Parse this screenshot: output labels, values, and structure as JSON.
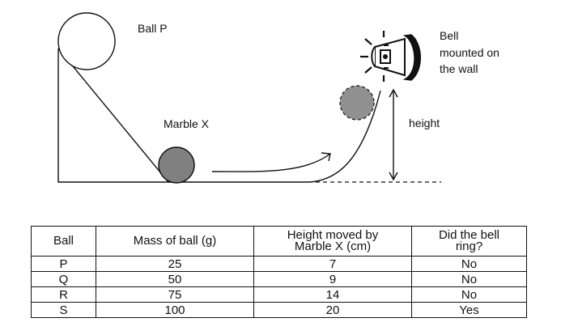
{
  "diagram": {
    "ball_p_label": "Ball P",
    "marble_label": "Marble X",
    "bell_label_line1": "Bell",
    "bell_label_line2": "mounted on",
    "bell_label_line3": "the wall",
    "height_label": "height"
  },
  "table": {
    "headers": [
      "Ball",
      "Mass of ball (g)",
      "Height moved by Marble X (cm)",
      "Did the bell ring?"
    ],
    "header_lines": [
      [
        "Ball"
      ],
      [
        "Mass of ball (g)"
      ],
      [
        "Height moved by",
        "Marble X (cm)"
      ],
      [
        "Did the bell",
        "ring?"
      ]
    ],
    "rows": [
      [
        "P",
        "25",
        "7",
        "No"
      ],
      [
        "Q",
        "50",
        "9",
        "No"
      ],
      [
        "R",
        "75",
        "14",
        "No"
      ],
      [
        "S",
        "100",
        "20",
        "Yes"
      ]
    ]
  },
  "colors": {
    "ink": "#111111",
    "marble_fill": "#808080"
  }
}
